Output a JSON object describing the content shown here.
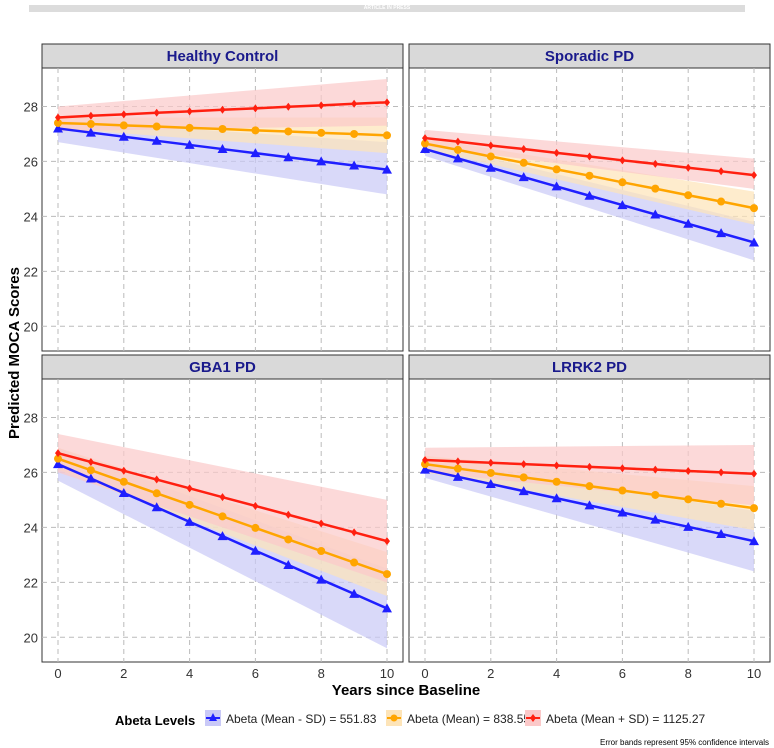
{
  "banner": "ARTICLE IN PRESS",
  "chart_data": {
    "type": "line",
    "xlabel": "Years since Baseline",
    "ylabel": "Predicted MOCA Scores",
    "xlim": [
      0,
      10
    ],
    "ylim": [
      19.1,
      29.4
    ],
    "x_ticks": [
      0,
      2,
      4,
      6,
      8,
      10
    ],
    "y_ticks": [
      20,
      22,
      24,
      26,
      28
    ],
    "grid": true,
    "x": [
      0,
      1,
      2,
      3,
      4,
      5,
      6,
      7,
      8,
      9,
      10
    ],
    "legend": {
      "title": "Abeta Levels",
      "placement": "bottom",
      "entries": [
        "Abeta (Mean - SD) = 551.83",
        "Abeta (Mean) = 838.55",
        "Abeta (Mean + SD) = 1125.27"
      ]
    },
    "series_colors": [
      "#1f1fff",
      "#ffa500",
      "#ff2010"
    ],
    "band_colors": [
      "#c9c9f7",
      "#fde4b8",
      "#fbc9c9"
    ],
    "markers": [
      "triangle",
      "circle",
      "diamond"
    ],
    "footnote": "Error bands represent 95% confidence intervals",
    "panels": [
      {
        "title": "Healthy Control",
        "series": [
          {
            "name": "Abeta (Mean - SD) = 551.83",
            "values": [
              27.2,
              27.05,
              26.9,
              26.75,
              26.6,
              26.45,
              26.3,
              26.15,
              26.0,
              25.85,
              25.7
            ],
            "band_lower": [
              26.7,
              24.8
            ],
            "band_upper": [
              27.5,
              26.7
            ]
          },
          {
            "name": "Abeta (Mean) = 838.55",
            "values": [
              27.4,
              27.36,
              27.31,
              27.27,
              27.22,
              27.18,
              27.13,
              27.09,
              27.04,
              27.0,
              26.95
            ],
            "band_lower": [
              27.2,
              26.3
            ],
            "band_upper": [
              27.6,
              27.6
            ]
          },
          {
            "name": "Abeta (Mean + SD) = 1125.27",
            "values": [
              27.6,
              27.66,
              27.71,
              27.77,
              27.82,
              27.88,
              27.93,
              27.99,
              28.04,
              28.1,
              28.15
            ],
            "band_lower": [
              27.1,
              27.3
            ],
            "band_upper": [
              28.0,
              29.0
            ]
          }
        ]
      },
      {
        "title": "Sporadic PD",
        "series": [
          {
            "name": "Abeta (Mean - SD) = 551.83",
            "values": [
              26.45,
              26.11,
              25.77,
              25.43,
              25.09,
              24.75,
              24.41,
              24.07,
              23.73,
              23.39,
              23.05
            ],
            "band_lower": [
              26.2,
              22.4
            ],
            "band_upper": [
              26.7,
              23.8
            ]
          },
          {
            "name": "Abeta (Mean) = 838.55",
            "values": [
              26.65,
              26.42,
              26.18,
              25.95,
              25.71,
              25.48,
              25.24,
              25.01,
              24.77,
              24.54,
              24.3
            ],
            "band_lower": [
              26.45,
              23.7
            ],
            "band_upper": [
              26.85,
              24.9
            ]
          },
          {
            "name": "Abeta (Mean + SD) = 1125.27",
            "values": [
              26.85,
              26.72,
              26.58,
              26.45,
              26.31,
              26.18,
              26.04,
              25.91,
              25.77,
              25.64,
              25.5
            ],
            "band_lower": [
              26.55,
              25.0
            ],
            "band_upper": [
              27.15,
              26.1
            ]
          }
        ]
      },
      {
        "title": "GBA1 PD",
        "series": [
          {
            "name": "Abeta (Mean - SD) = 551.83",
            "values": [
              26.3,
              25.78,
              25.25,
              24.73,
              24.2,
              23.68,
              23.15,
              22.63,
              22.1,
              21.58,
              21.05
            ],
            "band_lower": [
              25.7,
              19.6
            ],
            "band_upper": [
              26.9,
              22.5
            ]
          },
          {
            "name": "Abeta (Mean) = 838.55",
            "values": [
              26.5,
              26.08,
              25.66,
              25.24,
              24.82,
              24.4,
              23.98,
              23.56,
              23.14,
              22.72,
              22.3
            ],
            "band_lower": [
              26.1,
              21.5
            ],
            "band_upper": [
              26.9,
              23.1
            ]
          },
          {
            "name": "Abeta (Mean + SD) = 1125.27",
            "values": [
              26.7,
              26.38,
              26.06,
              25.74,
              25.42,
              25.1,
              24.78,
              24.46,
              24.14,
              23.82,
              23.5
            ],
            "band_lower": [
              26.0,
              22.0
            ],
            "band_upper": [
              27.4,
              25.0
            ]
          }
        ]
      },
      {
        "title": "LRRK2 PD",
        "series": [
          {
            "name": "Abeta (Mean - SD) = 551.83",
            "values": [
              26.1,
              25.84,
              25.58,
              25.32,
              25.06,
              24.8,
              24.54,
              24.28,
              24.02,
              23.76,
              23.5
            ],
            "band_lower": [
              25.8,
              22.4
            ],
            "band_upper": [
              26.4,
              24.6
            ]
          },
          {
            "name": "Abeta (Mean) = 838.55",
            "values": [
              26.3,
              26.14,
              25.98,
              25.82,
              25.66,
              25.5,
              25.34,
              25.18,
              25.02,
              24.86,
              24.7
            ],
            "band_lower": [
              26.0,
              23.9
            ],
            "band_upper": [
              26.6,
              25.5
            ]
          },
          {
            "name": "Abeta (Mean + SD) = 1125.27",
            "values": [
              26.45,
              26.4,
              26.35,
              26.3,
              26.25,
              26.2,
              26.15,
              26.1,
              26.05,
              26.0,
              25.95
            ],
            "band_lower": [
              26.0,
              24.8
            ],
            "band_upper": [
              26.9,
              27.0
            ]
          }
        ]
      }
    ]
  }
}
